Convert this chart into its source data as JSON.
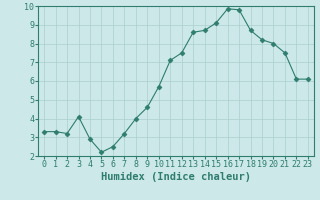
{
  "x": [
    0,
    1,
    2,
    3,
    4,
    5,
    6,
    7,
    8,
    9,
    10,
    11,
    12,
    13,
    14,
    15,
    16,
    17,
    18,
    19,
    20,
    21,
    22,
    23
  ],
  "y": [
    3.3,
    3.3,
    3.2,
    4.1,
    2.9,
    2.2,
    2.5,
    3.2,
    4.0,
    4.6,
    5.7,
    7.1,
    7.5,
    8.6,
    8.7,
    9.1,
    9.85,
    9.8,
    8.7,
    8.2,
    8.0,
    7.5,
    6.1,
    6.1
  ],
  "line_color": "#2e7d6e",
  "marker": "D",
  "marker_size": 2.5,
  "bg_color": "#cce8e8",
  "grid_color": "#aacfcf",
  "xlabel": "Humidex (Indice chaleur)",
  "ylim": [
    2,
    10
  ],
  "xlim": [
    -0.5,
    23.5
  ],
  "yticks": [
    2,
    3,
    4,
    5,
    6,
    7,
    8,
    9,
    10
  ],
  "xticks": [
    0,
    1,
    2,
    3,
    4,
    5,
    6,
    7,
    8,
    9,
    10,
    11,
    12,
    13,
    14,
    15,
    16,
    17,
    18,
    19,
    20,
    21,
    22,
    23
  ],
  "xtick_labels": [
    "0",
    "1",
    "2",
    "3",
    "4",
    "5",
    "6",
    "7",
    "8",
    "9",
    "10",
    "11",
    "12",
    "13",
    "14",
    "15",
    "16",
    "17",
    "18",
    "19",
    "20",
    "21",
    "22",
    "23"
  ],
  "xlabel_fontsize": 7.5,
  "tick_fontsize": 6
}
